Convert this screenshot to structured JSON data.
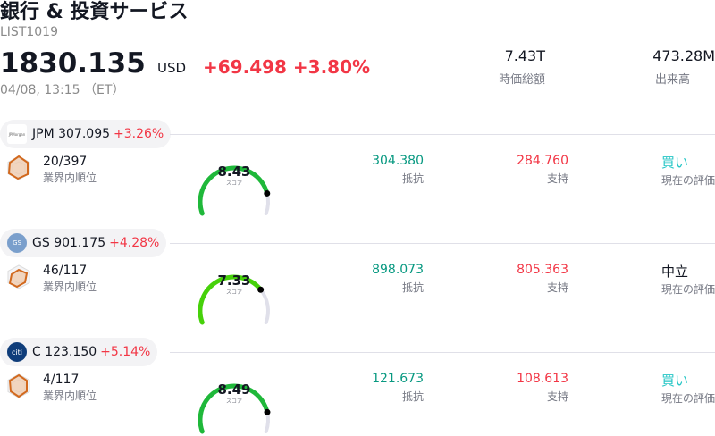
{
  "header": {
    "title": "銀行 & 投資サービス",
    "list_id": "LIST1019",
    "price": "1830.135",
    "currency": "USD",
    "change": "+69.498",
    "change_pct": "+3.80%",
    "timestamp": "04/08, 13:15 （ET）"
  },
  "stats": [
    {
      "value": "7.43T",
      "label": "時価総額"
    },
    {
      "value": "473.28M",
      "label": "出来高"
    }
  ],
  "labels": {
    "rank": "業界内順位",
    "score": "スコア",
    "resistance": "抵抗",
    "support": "支持",
    "rating": "現在の評価"
  },
  "colors": {
    "up": "#f23645",
    "resistance": "#089981",
    "support": "#f23645",
    "buy": "#26c6c6",
    "neutral": "#131722"
  },
  "stocks": [
    {
      "ticker": "JPM",
      "price": "307.095",
      "change_pct": "+3.26%",
      "logo": "jpm-logo",
      "rank": "20/397",
      "score": 8.43,
      "score_text": "8.43",
      "gauge_color": "#1fb83a",
      "resistance": "304.380",
      "support": "284.760",
      "rating": "買い",
      "rating_color": "#26c6c6"
    },
    {
      "ticker": "GS",
      "price": "901.175",
      "change_pct": "+4.28%",
      "logo": "goldman-sachs-logo",
      "rank": "46/117",
      "score": 7.33,
      "score_text": "7.33",
      "gauge_color": "#46d10a",
      "resistance": "898.073",
      "support": "805.363",
      "rating": "中立",
      "rating_color": "#131722"
    },
    {
      "ticker": "C",
      "price": "123.150",
      "change_pct": "+5.14%",
      "logo": "citi-logo",
      "rank": "4/117",
      "score": 8.49,
      "score_text": "8.49",
      "gauge_color": "#1fb83a",
      "resistance": "121.673",
      "support": "108.613",
      "rating": "買い",
      "rating_color": "#26c6c6"
    }
  ]
}
